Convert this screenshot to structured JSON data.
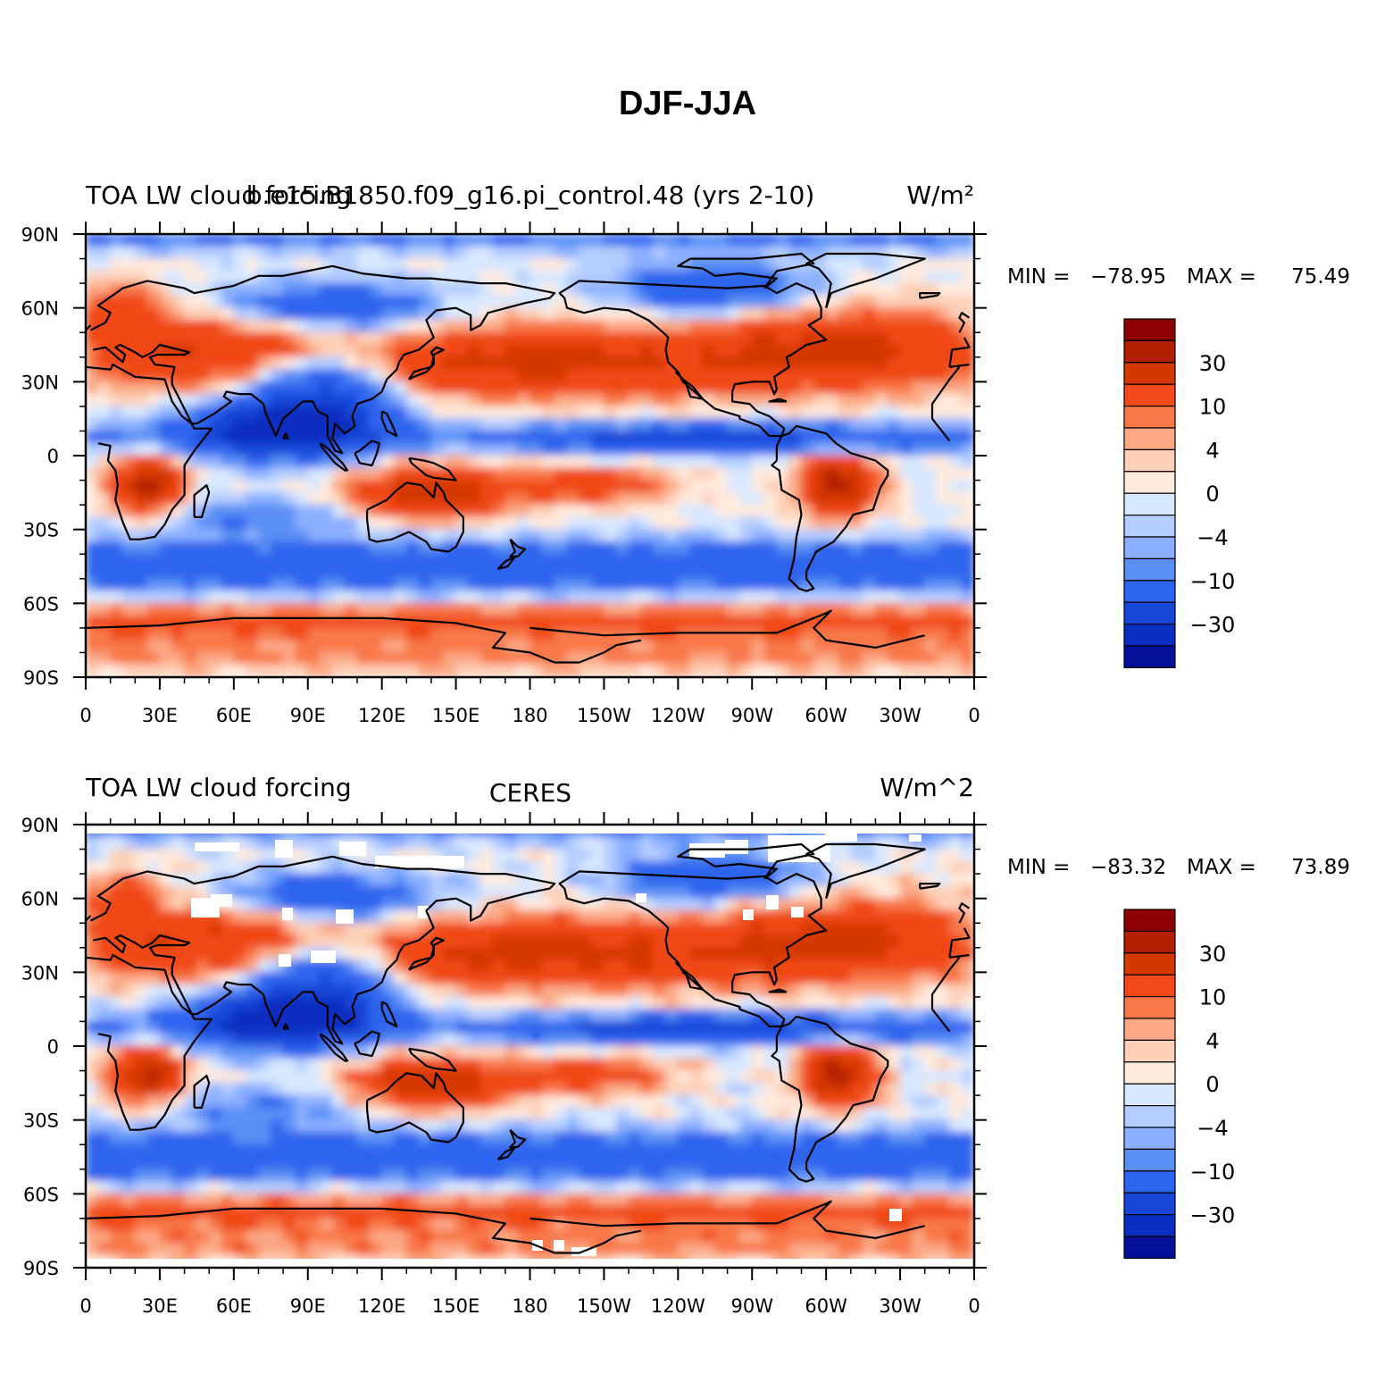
{
  "title": "DJF-JJA",
  "panels": [
    {
      "left_label": "TOA LW cloud forcing",
      "center_label": "b.e15.B1850.f09_g16.pi_control.48 (yrs 2-10)",
      "right_label": "W/m²",
      "min_label": "MIN =",
      "min_value": "−78.95",
      "max_label": "MAX =",
      "max_value": "75.49",
      "missing_data": false
    },
    {
      "left_label": "TOA LW cloud forcing",
      "center_label": "CERES",
      "right_label": "W/m^2",
      "min_label": "MIN =",
      "min_value": "−83.32",
      "max_label": "MAX =",
      "max_value": "73.89",
      "missing_data": true
    }
  ],
  "lat_ticks": [
    "90N",
    "60N",
    "30N",
    "0",
    "30S",
    "60S",
    "90S"
  ],
  "lon_ticks": [
    "0",
    "30E",
    "60E",
    "90E",
    "120E",
    "150E",
    "180",
    "150W",
    "120W",
    "90W",
    "60W",
    "30W",
    "0"
  ],
  "colorbar": {
    "colors": [
      "#8b0000",
      "#b22000",
      "#d43800",
      "#f04a18",
      "#f8784a",
      "#fba884",
      "#fdd0b8",
      "#ffeadc",
      "#d8e8ff",
      "#b4cdff",
      "#8cb0ff",
      "#5a8ff5",
      "#2d65ee",
      "#1746d8",
      "#0a2ec0",
      "#04109a"
    ],
    "labels": [
      {
        "text": "30",
        "boundary": 2
      },
      {
        "text": "10",
        "boundary": 4
      },
      {
        "text": "4",
        "boundary": 6
      },
      {
        "text": "0",
        "boundary": 8
      },
      {
        "text": "−4",
        "boundary": 10
      },
      {
        "text": "−10",
        "boundary": 12
      },
      {
        "text": "−30",
        "boundary": 14
      }
    ]
  }
}
